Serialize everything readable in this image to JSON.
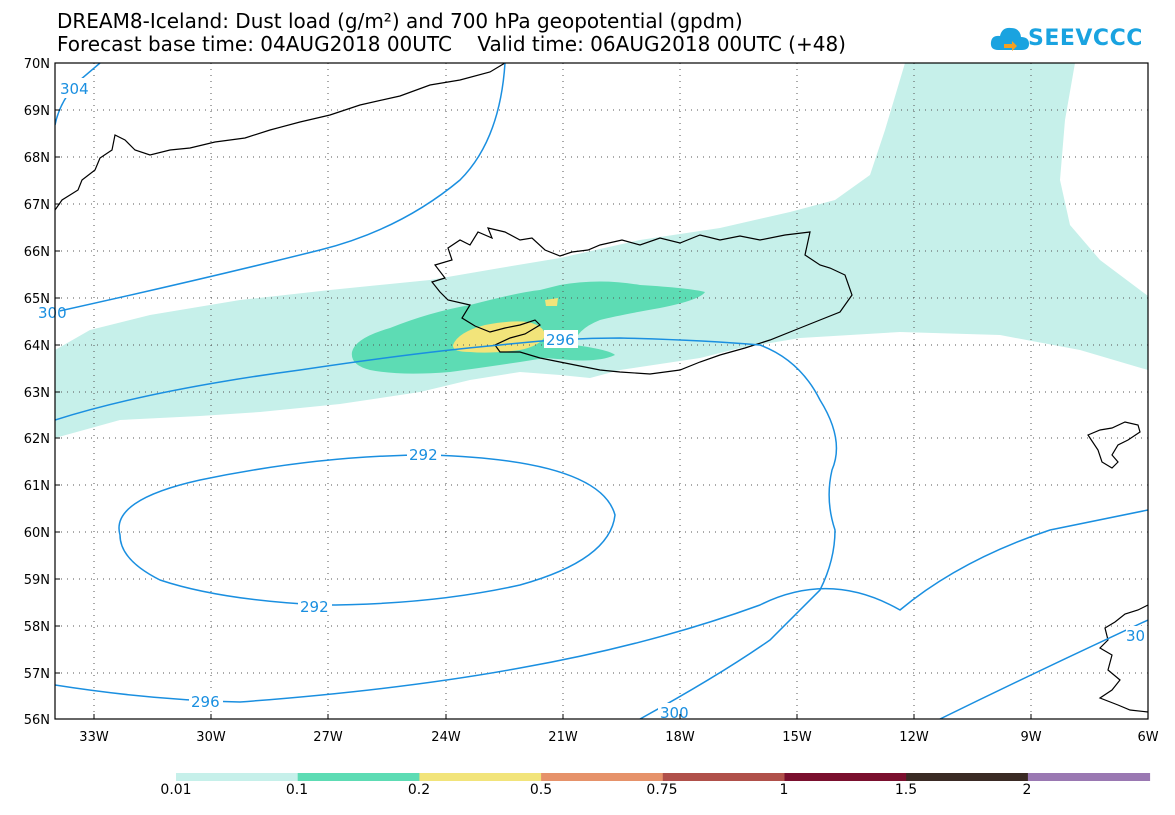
{
  "title": {
    "line1": "DREAM8-Iceland: Dust load (g/m²) and 700 hPa geopotential (gpdm)",
    "line2": "Forecast base time: 04AUG2018 00UTC    Valid time: 06AUG2018 00UTC (+48)"
  },
  "logo": {
    "text": "SEEVCCC",
    "icon": "cloud-icon"
  },
  "axes": {
    "lat_labels": [
      "70N",
      "69N",
      "68N",
      "67N",
      "66N",
      "65N",
      "64N",
      "63N",
      "62N",
      "61N",
      "60N",
      "59N",
      "58N",
      "57N",
      "56N"
    ],
    "lon_labels": [
      "33W",
      "30W",
      "27W",
      "24W",
      "21W",
      "18W",
      "15W",
      "12W",
      "9W",
      "6W"
    ]
  },
  "contours": {
    "color": "#1a8fe0",
    "labels": [
      "304",
      "300",
      "296",
      "292",
      "292",
      "296",
      "300",
      "30"
    ]
  },
  "legend": {
    "colors": [
      "#c6f0ea",
      "#5ddcb4",
      "#f2e47a",
      "#e6926a",
      "#b0504a",
      "#7a0f2e",
      "#3a2a24",
      "#9a78b2"
    ],
    "labels": [
      "0.01",
      "0.1",
      "0.2",
      "0.5",
      "0.75",
      "1",
      "1.5",
      "2"
    ]
  }
}
